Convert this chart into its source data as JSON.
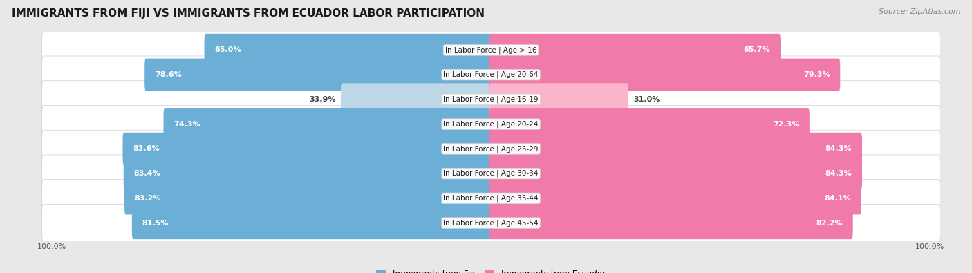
{
  "title": "IMMIGRANTS FROM FIJI VS IMMIGRANTS FROM ECUADOR LABOR PARTICIPATION",
  "source": "Source: ZipAtlas.com",
  "categories": [
    "In Labor Force | Age > 16",
    "In Labor Force | Age 20-64",
    "In Labor Force | Age 16-19",
    "In Labor Force | Age 20-24",
    "In Labor Force | Age 25-29",
    "In Labor Force | Age 30-34",
    "In Labor Force | Age 35-44",
    "In Labor Force | Age 45-54"
  ],
  "fiji_values": [
    65.0,
    78.6,
    33.9,
    74.3,
    83.6,
    83.4,
    83.2,
    81.5
  ],
  "ecuador_values": [
    65.7,
    79.3,
    31.0,
    72.3,
    84.3,
    84.3,
    84.1,
    82.2
  ],
  "fiji_color": "#6baed6",
  "fiji_color_light": "#bdd7e7",
  "ecuador_color": "#f07aaa",
  "ecuador_color_light": "#fbb4cb",
  "max_value": 100.0,
  "bg_color": "#e8e8e8",
  "row_bg_even": "#f5f5f5",
  "row_bg_odd": "#ebebeb",
  "legend_fiji": "Immigrants from Fiji",
  "legend_ecuador": "Immigrants from Ecuador",
  "title_fontsize": 11,
  "source_fontsize": 8,
  "label_fontsize": 8,
  "bar_label_fontsize": 8,
  "tick_fontsize": 8
}
